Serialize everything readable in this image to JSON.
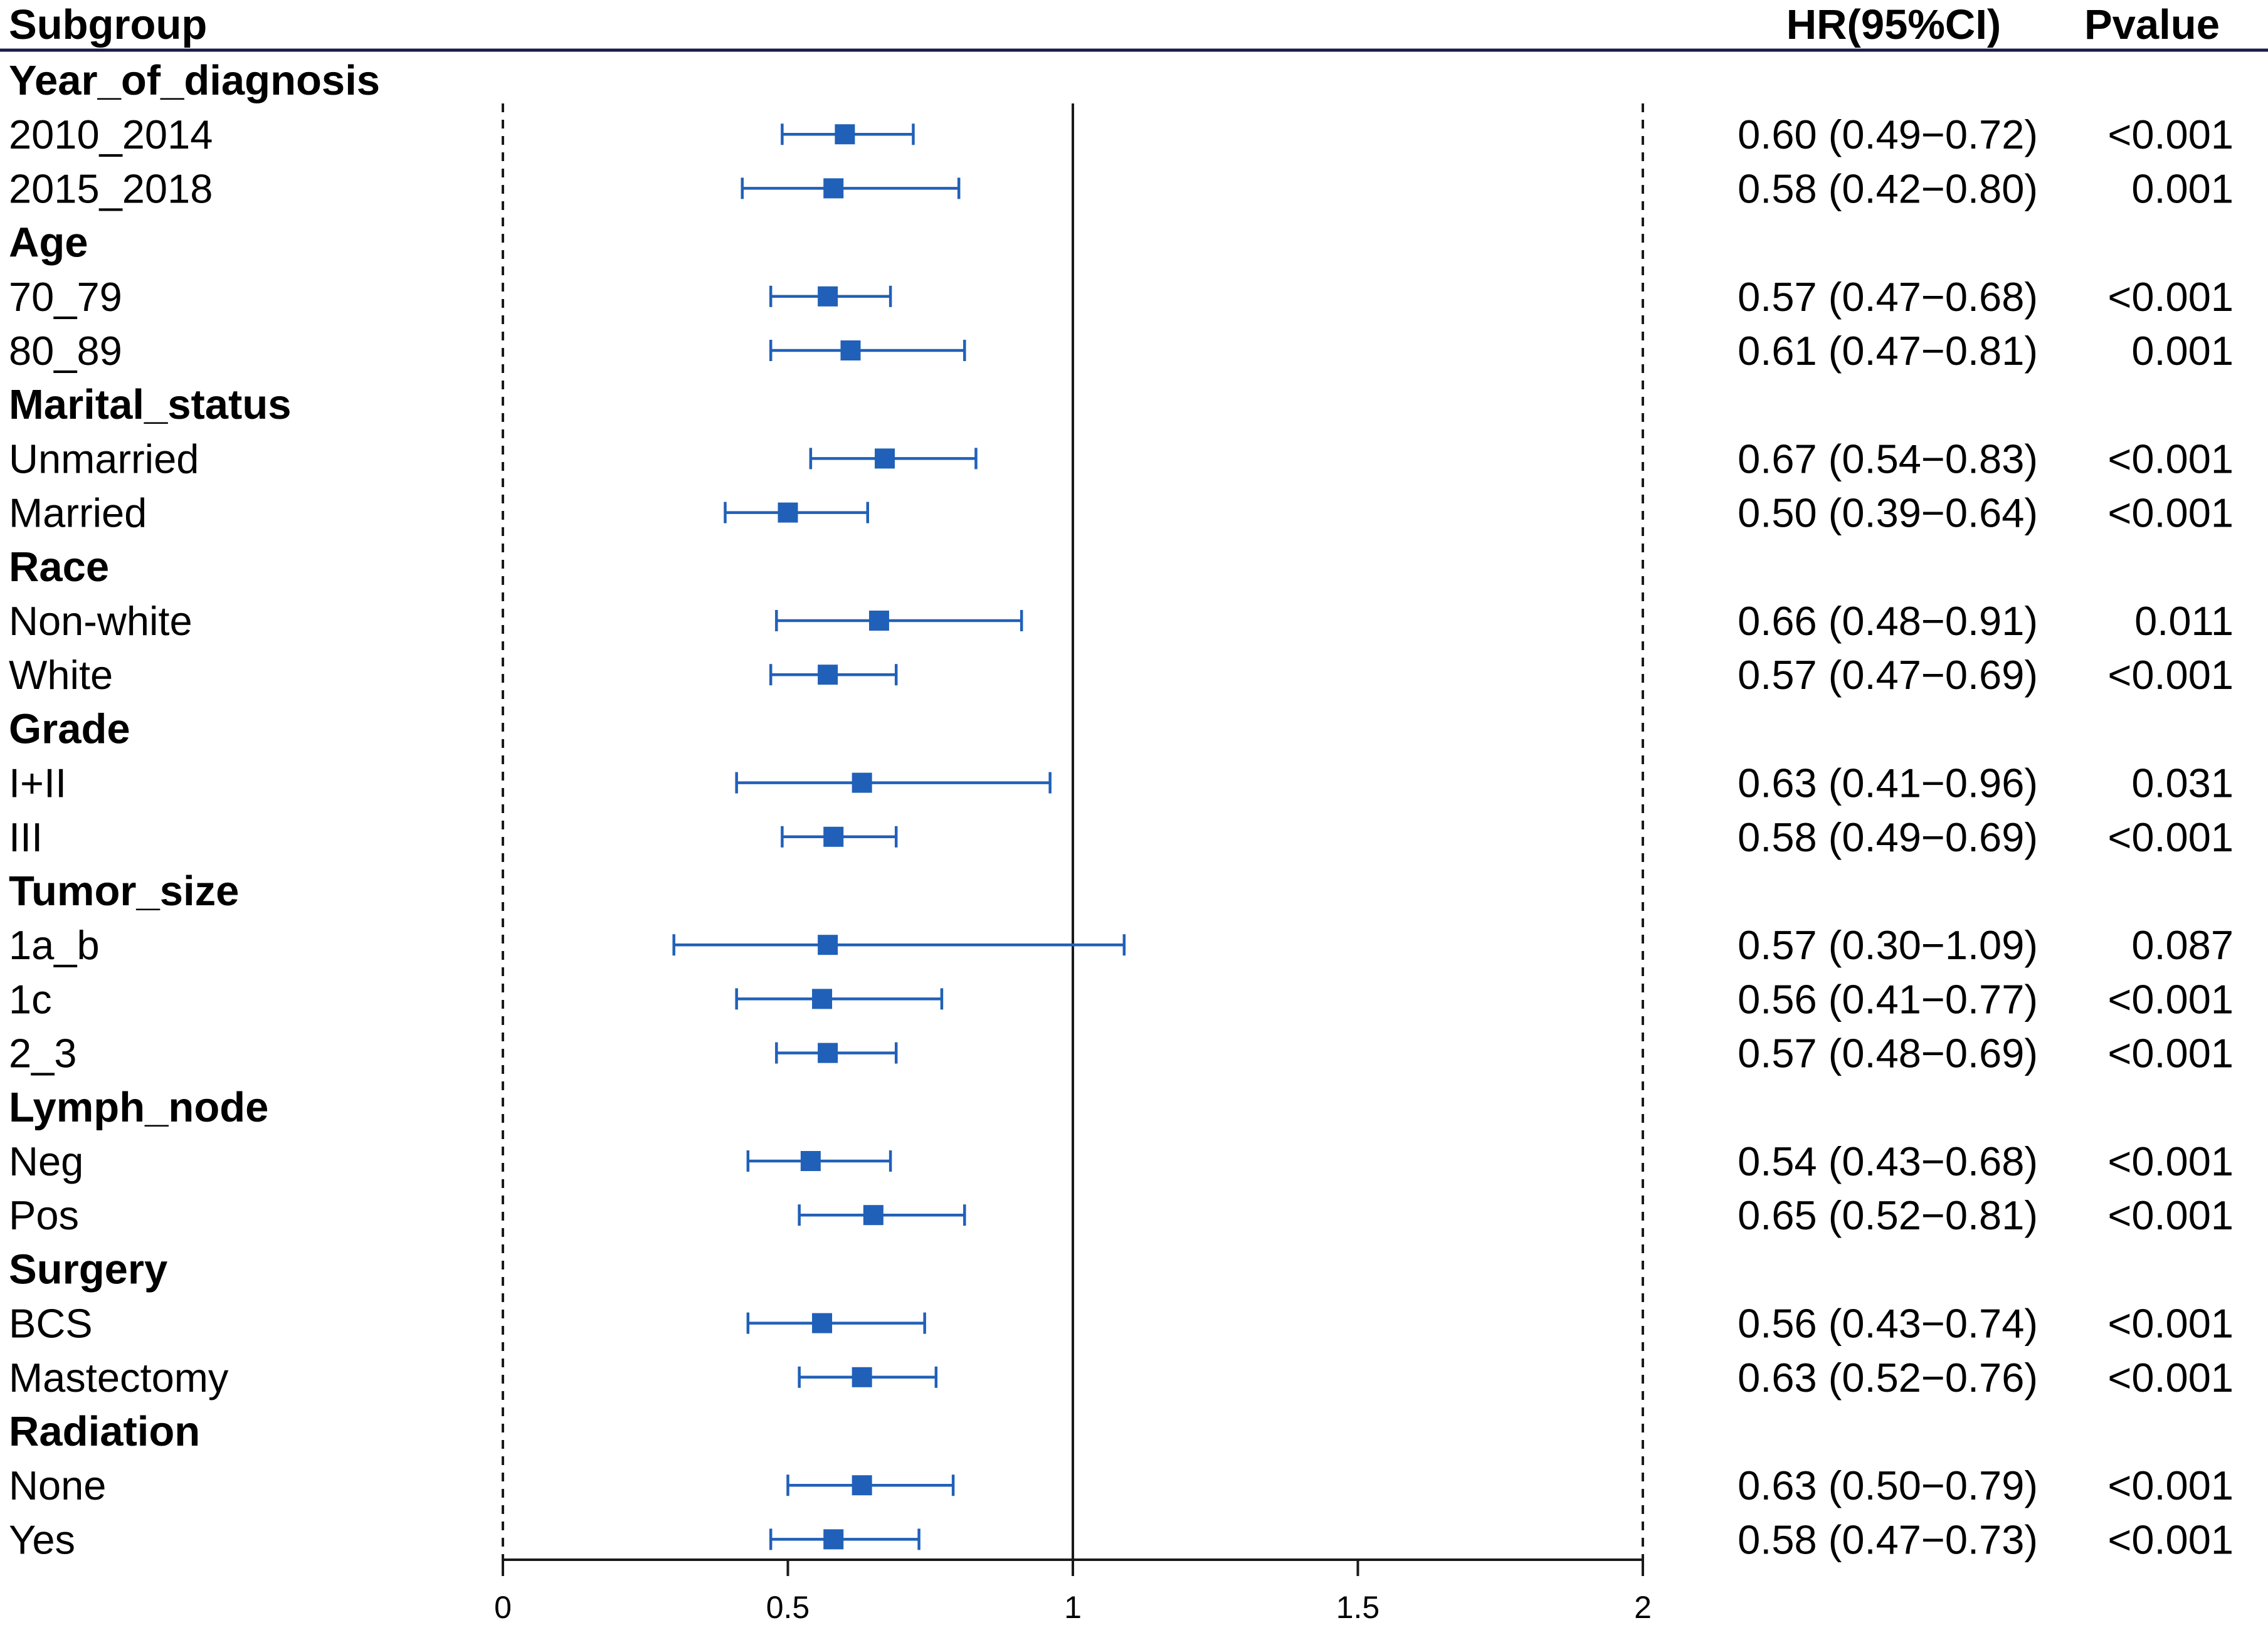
{
  "header": {
    "subgroup": "Subgroup",
    "hr": "HR(95%CI)",
    "pvalue": "Pvalue"
  },
  "colors": {
    "marker": "#2060b8",
    "line": "#1a1a1a",
    "header_rule": "#1a1a4a"
  },
  "chart_data": {
    "type": "forest",
    "x_ticks": [
      "0",
      "0.5",
      "1",
      "1.5",
      "2"
    ],
    "xlim": [
      0,
      2
    ],
    "reference_line": 1,
    "dashed_lines": [
      0,
      2
    ],
    "rows": [
      {
        "kind": "group",
        "label": "Year_of_diagnosis"
      },
      {
        "kind": "item",
        "label": "2010_2014",
        "hr": 0.6,
        "lo": 0.49,
        "hi": 0.72,
        "hr_text": "0.60 (0.49−0.72)",
        "p": "<0.001"
      },
      {
        "kind": "item",
        "label": "2015_2018",
        "hr": 0.58,
        "lo": 0.42,
        "hi": 0.8,
        "hr_text": "0.58 (0.42−0.80)",
        "p": "0.001"
      },
      {
        "kind": "group",
        "label": "Age"
      },
      {
        "kind": "item",
        "label": "70_79",
        "hr": 0.57,
        "lo": 0.47,
        "hi": 0.68,
        "hr_text": "0.57 (0.47−0.68)",
        "p": "<0.001"
      },
      {
        "kind": "item",
        "label": "80_89",
        "hr": 0.61,
        "lo": 0.47,
        "hi": 0.81,
        "hr_text": "0.61 (0.47−0.81)",
        "p": "0.001"
      },
      {
        "kind": "group",
        "label": "Marital_status"
      },
      {
        "kind": "item",
        "label": "Unmarried",
        "hr": 0.67,
        "lo": 0.54,
        "hi": 0.83,
        "hr_text": "0.67 (0.54−0.83)",
        "p": "<0.001"
      },
      {
        "kind": "item",
        "label": "Married",
        "hr": 0.5,
        "lo": 0.39,
        "hi": 0.64,
        "hr_text": "0.50 (0.39−0.64)",
        "p": "<0.001"
      },
      {
        "kind": "group",
        "label": "Race"
      },
      {
        "kind": "item",
        "label": "Non-white",
        "hr": 0.66,
        "lo": 0.48,
        "hi": 0.91,
        "hr_text": "0.66 (0.48−0.91)",
        "p": "0.011"
      },
      {
        "kind": "item",
        "label": "White",
        "hr": 0.57,
        "lo": 0.47,
        "hi": 0.69,
        "hr_text": "0.57 (0.47−0.69)",
        "p": "<0.001"
      },
      {
        "kind": "group",
        "label": "Grade"
      },
      {
        "kind": "item",
        "label": "I+II",
        "hr": 0.63,
        "lo": 0.41,
        "hi": 0.96,
        "hr_text": "0.63 (0.41−0.96)",
        "p": "0.031"
      },
      {
        "kind": "item",
        "label": "III",
        "hr": 0.58,
        "lo": 0.49,
        "hi": 0.69,
        "hr_text": "0.58 (0.49−0.69)",
        "p": "<0.001"
      },
      {
        "kind": "group",
        "label": "Tumor_size"
      },
      {
        "kind": "item",
        "label": "1a_b",
        "hr": 0.57,
        "lo": 0.3,
        "hi": 1.09,
        "hr_text": "0.57 (0.30−1.09)",
        "p": "0.087"
      },
      {
        "kind": "item",
        "label": "1c",
        "hr": 0.56,
        "lo": 0.41,
        "hi": 0.77,
        "hr_text": "0.56 (0.41−0.77)",
        "p": "<0.001"
      },
      {
        "kind": "item",
        "label": "2_3",
        "hr": 0.57,
        "lo": 0.48,
        "hi": 0.69,
        "hr_text": "0.57 (0.48−0.69)",
        "p": "<0.001"
      },
      {
        "kind": "group",
        "label": "Lymph_node"
      },
      {
        "kind": "item",
        "label": "Neg",
        "hr": 0.54,
        "lo": 0.43,
        "hi": 0.68,
        "hr_text": "0.54 (0.43−0.68)",
        "p": "<0.001"
      },
      {
        "kind": "item",
        "label": "Pos",
        "hr": 0.65,
        "lo": 0.52,
        "hi": 0.81,
        "hr_text": "0.65 (0.52−0.81)",
        "p": "<0.001"
      },
      {
        "kind": "group",
        "label": "Surgery"
      },
      {
        "kind": "item",
        "label": "BCS",
        "hr": 0.56,
        "lo": 0.43,
        "hi": 0.74,
        "hr_text": "0.56 (0.43−0.74)",
        "p": "<0.001"
      },
      {
        "kind": "item",
        "label": "Mastectomy",
        "hr": 0.63,
        "lo": 0.52,
        "hi": 0.76,
        "hr_text": "0.63 (0.52−0.76)",
        "p": "<0.001"
      },
      {
        "kind": "group",
        "label": "Radiation"
      },
      {
        "kind": "item",
        "label": "None",
        "hr": 0.63,
        "lo": 0.5,
        "hi": 0.79,
        "hr_text": "0.63 (0.50−0.79)",
        "p": "<0.001"
      },
      {
        "kind": "item",
        "label": "Yes",
        "hr": 0.58,
        "lo": 0.47,
        "hi": 0.73,
        "hr_text": "0.58 (0.47−0.73)",
        "p": "<0.001"
      }
    ]
  }
}
